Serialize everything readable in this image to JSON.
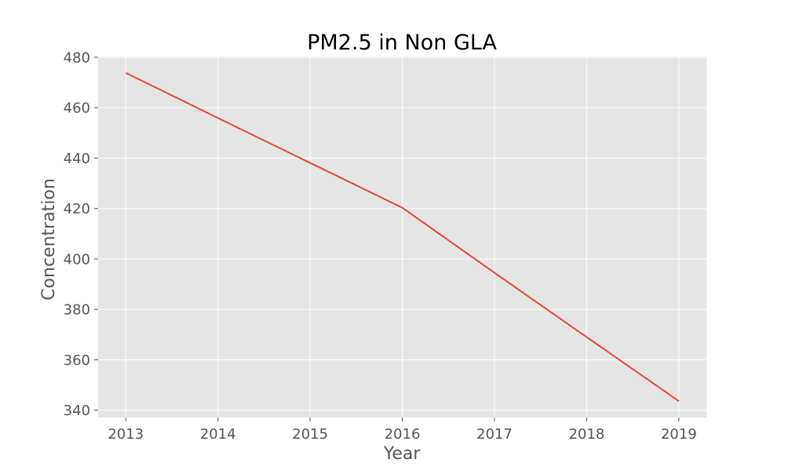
{
  "chart_data": {
    "type": "line",
    "title": "PM2.5 in Non GLA",
    "xlabel": "Year",
    "ylabel": "Concentration",
    "x": [
      2013,
      2014,
      2015,
      2016,
      2017,
      2018,
      2019
    ],
    "series": [
      {
        "values": [
          473.8,
          455.9,
          438.1,
          420.3,
          394.5,
          369.0,
          343.6
        ],
        "color": "#E24A33"
      }
    ],
    "xticks": [
      "2013",
      "2014",
      "2015",
      "2016",
      "2017",
      "2018",
      "2019"
    ],
    "yticks": [
      "340",
      "360",
      "380",
      "400",
      "420",
      "440",
      "460",
      "480"
    ],
    "xlim": [
      2012.7,
      2019.3
    ],
    "ylim": [
      337.1,
      480.3
    ],
    "grid": true,
    "legend": "none",
    "style": "ggplot",
    "colors": {
      "plot_background": "#E5E5E5",
      "grid": "#FFFFFF",
      "tick_text": "#555555"
    }
  }
}
